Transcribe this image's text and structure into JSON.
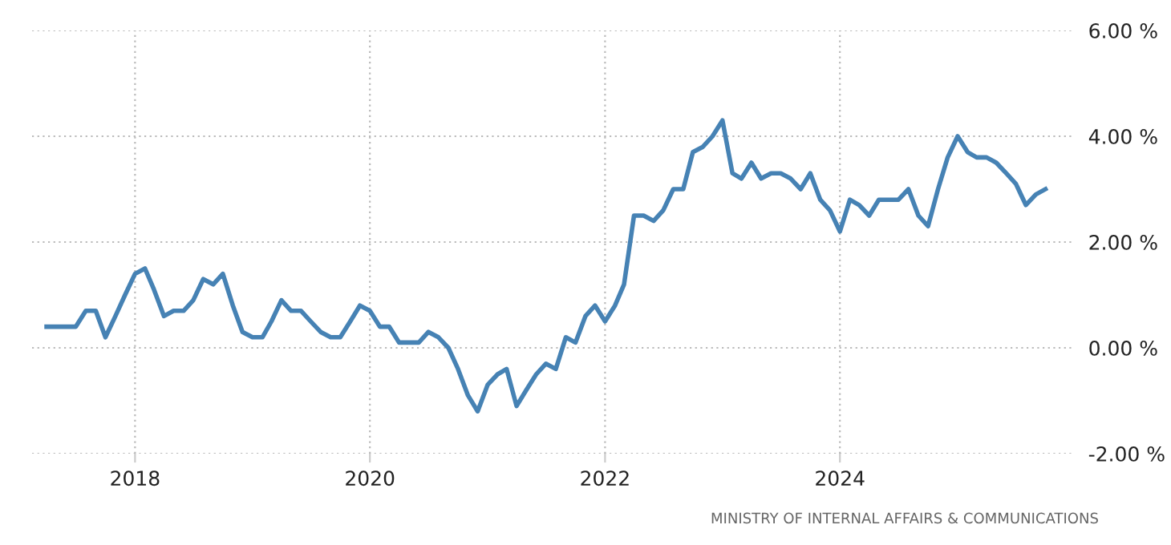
{
  "chart_data": {
    "type": "line",
    "x": [
      "2017-04",
      "2017-05",
      "2017-06",
      "2017-07",
      "2017-08",
      "2017-09",
      "2017-10",
      "2017-11",
      "2017-12",
      "2018-01",
      "2018-02",
      "2018-03",
      "2018-04",
      "2018-05",
      "2018-06",
      "2018-07",
      "2018-08",
      "2018-09",
      "2018-10",
      "2018-11",
      "2018-12",
      "2019-01",
      "2019-02",
      "2019-03",
      "2019-04",
      "2019-05",
      "2019-06",
      "2019-07",
      "2019-08",
      "2019-09",
      "2019-10",
      "2019-11",
      "2019-12",
      "2020-01",
      "2020-02",
      "2020-03",
      "2020-04",
      "2020-05",
      "2020-06",
      "2020-07",
      "2020-08",
      "2020-09",
      "2020-10",
      "2020-11",
      "2020-12",
      "2021-01",
      "2021-02",
      "2021-03",
      "2021-04",
      "2021-05",
      "2021-06",
      "2021-07",
      "2021-08",
      "2021-09",
      "2021-10",
      "2021-11",
      "2021-12",
      "2022-01",
      "2022-02",
      "2022-03",
      "2022-04",
      "2022-05",
      "2022-06",
      "2022-07",
      "2022-08",
      "2022-09",
      "2022-10",
      "2022-11",
      "2022-12",
      "2023-01",
      "2023-02",
      "2023-03",
      "2023-04",
      "2023-05",
      "2023-06",
      "2023-07",
      "2023-08",
      "2023-09",
      "2023-10",
      "2023-11",
      "2023-12",
      "2024-01",
      "2024-02",
      "2024-03",
      "2024-04",
      "2024-05",
      "2024-06",
      "2024-07",
      "2024-08",
      "2024-09",
      "2024-10",
      "2024-11",
      "2024-12",
      "2025-01",
      "2025-02",
      "2025-03",
      "2025-04",
      "2025-05",
      "2025-06",
      "2025-07",
      "2025-08",
      "2025-09",
      "2025-10"
    ],
    "series": [
      {
        "color": "#4682b4",
        "values": [
          0.4,
          0.4,
          0.4,
          0.4,
          0.7,
          0.7,
          0.2,
          0.6,
          1.0,
          1.4,
          1.5,
          1.1,
          0.6,
          0.7,
          0.7,
          0.9,
          1.3,
          1.2,
          1.4,
          0.8,
          0.3,
          0.2,
          0.2,
          0.5,
          0.9,
          0.7,
          0.7,
          0.5,
          0.3,
          0.2,
          0.2,
          0.5,
          0.8,
          0.7,
          0.4,
          0.4,
          0.1,
          0.1,
          0.1,
          0.3,
          0.2,
          0.0,
          -0.4,
          -0.9,
          -1.2,
          -0.7,
          -0.5,
          -0.4,
          -1.1,
          -0.8,
          -0.5,
          -0.3,
          -0.4,
          0.2,
          0.1,
          0.6,
          0.8,
          0.5,
          0.8,
          1.2,
          2.5,
          2.5,
          2.4,
          2.6,
          3.0,
          3.0,
          3.7,
          3.8,
          4.0,
          4.3,
          3.3,
          3.2,
          3.5,
          3.2,
          3.3,
          3.3,
          3.2,
          3.0,
          3.3,
          2.8,
          2.6,
          2.2,
          2.8,
          2.7,
          2.5,
          2.8,
          2.8,
          2.8,
          3.0,
          2.5,
          2.3,
          3.0,
          3.6,
          4.0,
          3.7,
          3.6,
          3.6,
          3.5,
          3.3,
          3.1,
          2.7,
          2.9,
          3.0
        ]
      }
    ],
    "xlim": [
      "2017-02-15",
      "2025-12-31"
    ],
    "xticks": [
      {
        "value": "2018-01-01",
        "label": "2018"
      },
      {
        "value": "2020-01-01",
        "label": "2020"
      },
      {
        "value": "2022-01-01",
        "label": "2022"
      },
      {
        "value": "2024-01-01",
        "label": "2024"
      }
    ],
    "ylim": [
      -2,
      6
    ],
    "yticks": [
      {
        "value": -2,
        "label": "-2.00 %"
      },
      {
        "value": 0,
        "label": "0.00 %"
      },
      {
        "value": 2,
        "label": "2.00 %"
      },
      {
        "value": 4,
        "label": "4.00 %"
      },
      {
        "value": 6,
        "label": "6.00 %"
      }
    ],
    "grid": true,
    "annotations": [
      "MINISTRY OF INTERNAL AFFAIRS & COMMUNICATIONS"
    ]
  }
}
